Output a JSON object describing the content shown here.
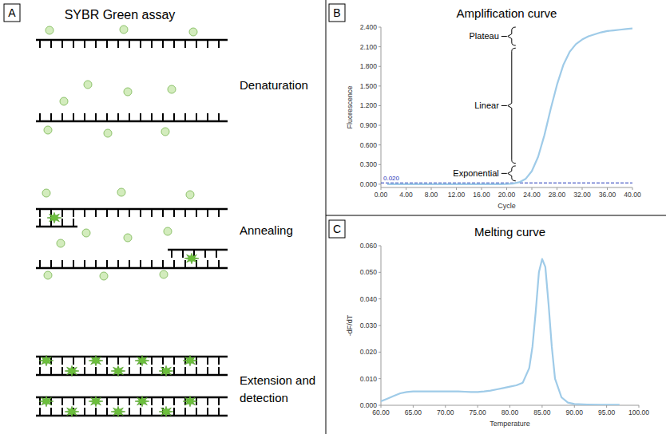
{
  "diagram": {
    "panel_label": "A",
    "title": "SYBR Green assay",
    "steps": [
      "Denaturation",
      "Annealing",
      "Extension and detection"
    ]
  },
  "chart_data": [
    {
      "type": "line",
      "panel_label": "B",
      "title": "Amplification curve",
      "x_label": "Cycle",
      "y_label": "Fluorescence",
      "color": "#9fcbe8",
      "grid": false,
      "x": [
        1,
        2,
        3,
        4,
        5,
        6,
        7,
        8,
        9,
        10,
        11,
        12,
        13,
        14,
        15,
        16,
        17,
        18,
        19,
        20,
        21,
        22,
        23,
        24,
        25,
        26,
        27,
        28,
        29,
        30,
        31,
        32,
        33,
        34,
        35,
        36,
        37,
        38,
        39,
        40
      ],
      "values": [
        0,
        0,
        0,
        0,
        0,
        0,
        0,
        0,
        0,
        0,
        0,
        0,
        0,
        0,
        0,
        0,
        0,
        0,
        0,
        0.002,
        0.01,
        0.03,
        0.08,
        0.2,
        0.42,
        0.75,
        1.15,
        1.52,
        1.82,
        2.02,
        2.14,
        2.21,
        2.26,
        2.29,
        2.32,
        2.34,
        2.35,
        2.36,
        2.37,
        2.38
      ],
      "xlim": [
        0,
        40
      ],
      "xticks": [
        {
          "value": 0,
          "label": "0.00"
        },
        {
          "value": 4,
          "label": "4.00"
        },
        {
          "value": 8,
          "label": "8.00"
        },
        {
          "value": 12,
          "label": "12.00"
        },
        {
          "value": 16,
          "label": "16.00"
        },
        {
          "value": 20,
          "label": "20.00"
        },
        {
          "value": 24,
          "label": "24.00"
        },
        {
          "value": 28,
          "label": "28.00"
        },
        {
          "value": 32,
          "label": "32.00"
        },
        {
          "value": 36,
          "label": "36.00"
        },
        {
          "value": 40,
          "label": "40.00"
        }
      ],
      "ylim": [
        -0.05,
        2.4
      ],
      "yticks": [
        {
          "value": 0,
          "label": "0.000"
        },
        {
          "value": 0.3,
          "label": "0.300"
        },
        {
          "value": 0.6,
          "label": "0.600"
        },
        {
          "value": 0.9,
          "label": "0.900"
        },
        {
          "value": 1.2,
          "label": "1.200"
        },
        {
          "value": 1.5,
          "label": "1.500"
        },
        {
          "value": 1.8,
          "label": "1.800"
        },
        {
          "value": 2.1,
          "label": "2.100"
        },
        {
          "value": 2.4,
          "label": "2.400"
        }
      ],
      "threshold": {
        "value": 0.02,
        "label": "0.020",
        "color": "#1f35b8"
      },
      "annotations": [
        {
          "text": "Plateau",
          "y_from": 2.12,
          "y_to": 2.4
        },
        {
          "text": "Linear",
          "y_from": 0.32,
          "y_to": 2.08
        },
        {
          "text": "Exponential",
          "y_from": 0.05,
          "y_to": 0.28
        }
      ]
    },
    {
      "type": "line",
      "panel_label": "C",
      "title": "Melting curve",
      "x_label": "Temperature",
      "y_label": "-dF/dT",
      "color": "#9fcbe8",
      "grid": false,
      "x": [
        60,
        61,
        62,
        63,
        64,
        65,
        66,
        67,
        68,
        69,
        70,
        71,
        72,
        73,
        74,
        75,
        76,
        77,
        78,
        79,
        80,
        81,
        82,
        83,
        83.5,
        84,
        84.5,
        85,
        85.5,
        86,
        86.5,
        87,
        88,
        89,
        90,
        92,
        94,
        97
      ],
      "values": [
        0.0015,
        0.0025,
        0.0035,
        0.0045,
        0.005,
        0.0052,
        0.0052,
        0.0052,
        0.0052,
        0.0052,
        0.0052,
        0.0052,
        0.0052,
        0.0051,
        0.005,
        0.005,
        0.0052,
        0.0055,
        0.006,
        0.0065,
        0.007,
        0.0075,
        0.0085,
        0.014,
        0.022,
        0.035,
        0.05,
        0.055,
        0.052,
        0.038,
        0.022,
        0.01,
        0.003,
        0.001,
        0.0005,
        0.0003,
        0.0002,
        0.0002
      ],
      "xlim": [
        60,
        100
      ],
      "xticks": [
        {
          "value": 60,
          "label": "60.00"
        },
        {
          "value": 65,
          "label": "65.00"
        },
        {
          "value": 70,
          "label": "70.00"
        },
        {
          "value": 75,
          "label": "75.00"
        },
        {
          "value": 80,
          "label": "80.00"
        },
        {
          "value": 85,
          "label": "85.00"
        },
        {
          "value": 90,
          "label": "90.00"
        },
        {
          "value": 95,
          "label": "95.00"
        },
        {
          "value": 100,
          "label": "100.00"
        }
      ],
      "ylim": [
        0,
        0.06
      ],
      "yticks": [
        {
          "value": 0,
          "label": "0.000"
        },
        {
          "value": 0.01,
          "label": "0.010"
        },
        {
          "value": 0.02,
          "label": "0.020"
        },
        {
          "value": 0.03,
          "label": "0.030"
        },
        {
          "value": 0.04,
          "label": "0.040"
        },
        {
          "value": 0.05,
          "label": "0.050"
        },
        {
          "value": 0.06,
          "label": "0.060"
        }
      ]
    }
  ]
}
